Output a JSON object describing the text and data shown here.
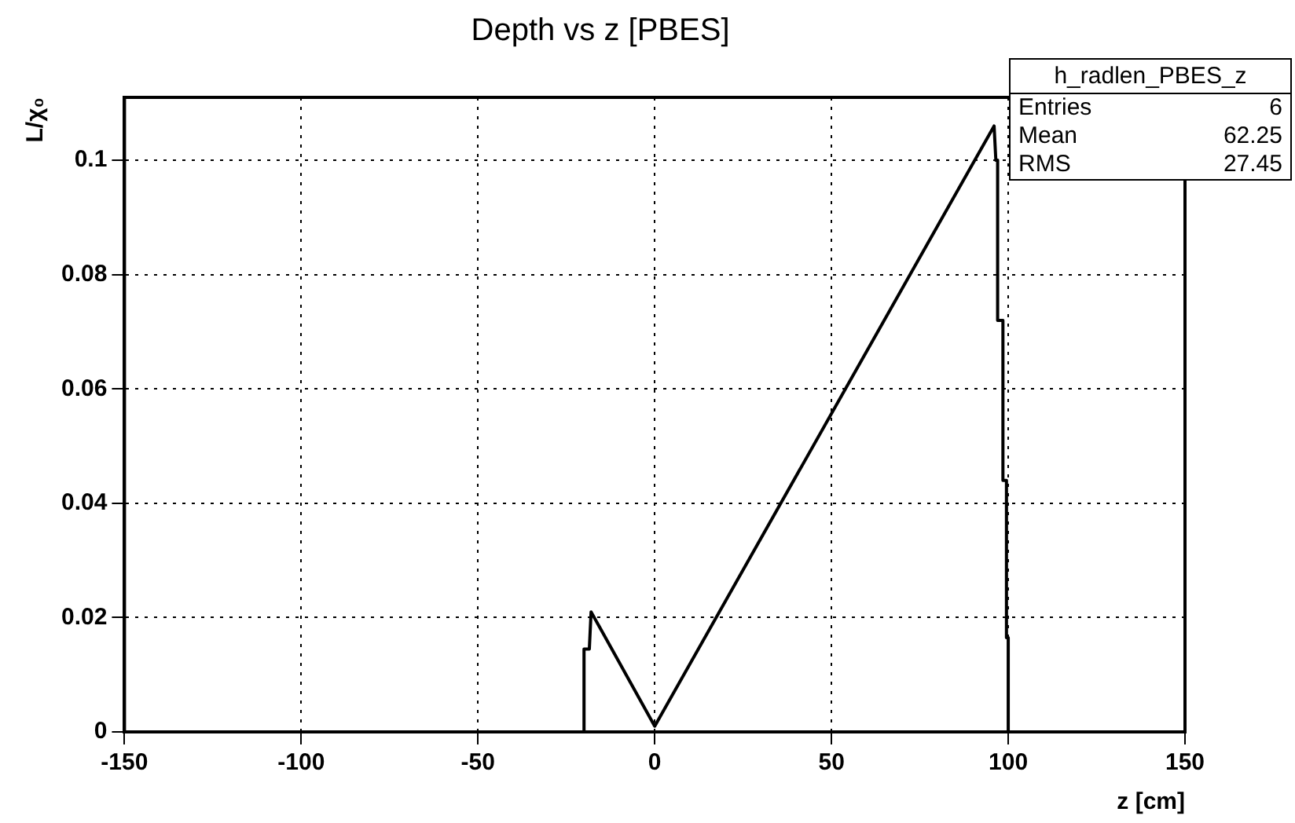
{
  "chart_data": {
    "type": "line",
    "title": "Depth vs z [PBES]",
    "xlabel": "z [cm]",
    "ylabel": "L/χ₀",
    "x": [
      -20,
      -20,
      -18.5,
      -18,
      0,
      96,
      96.5,
      97,
      97,
      98.5,
      98.5,
      99.5,
      99.5,
      100,
      100
    ],
    "series": [
      {
        "color": "#000000",
        "values": [
          0,
          0.0145,
          0.0145,
          0.021,
          0.001,
          0.106,
          0.1,
          0.1,
          0.072,
          0.072,
          0.044,
          0.044,
          0.0165,
          0.0165,
          0
        ]
      }
    ],
    "xlim": [
      -150,
      150
    ],
    "xticks": [
      -150,
      -100,
      -50,
      0,
      50,
      100,
      150
    ],
    "ylim": [
      0,
      0.111
    ],
    "yticks": [
      0,
      0.02,
      0.04,
      0.06,
      0.08,
      0.1
    ],
    "grid": true,
    "legend": false,
    "marker": "none",
    "line_style": "solid",
    "annotations": [
      "h_radlen_PBES_z",
      "Entries",
      "6",
      "Mean",
      "62.25",
      "RMS",
      "27.45"
    ]
  }
}
